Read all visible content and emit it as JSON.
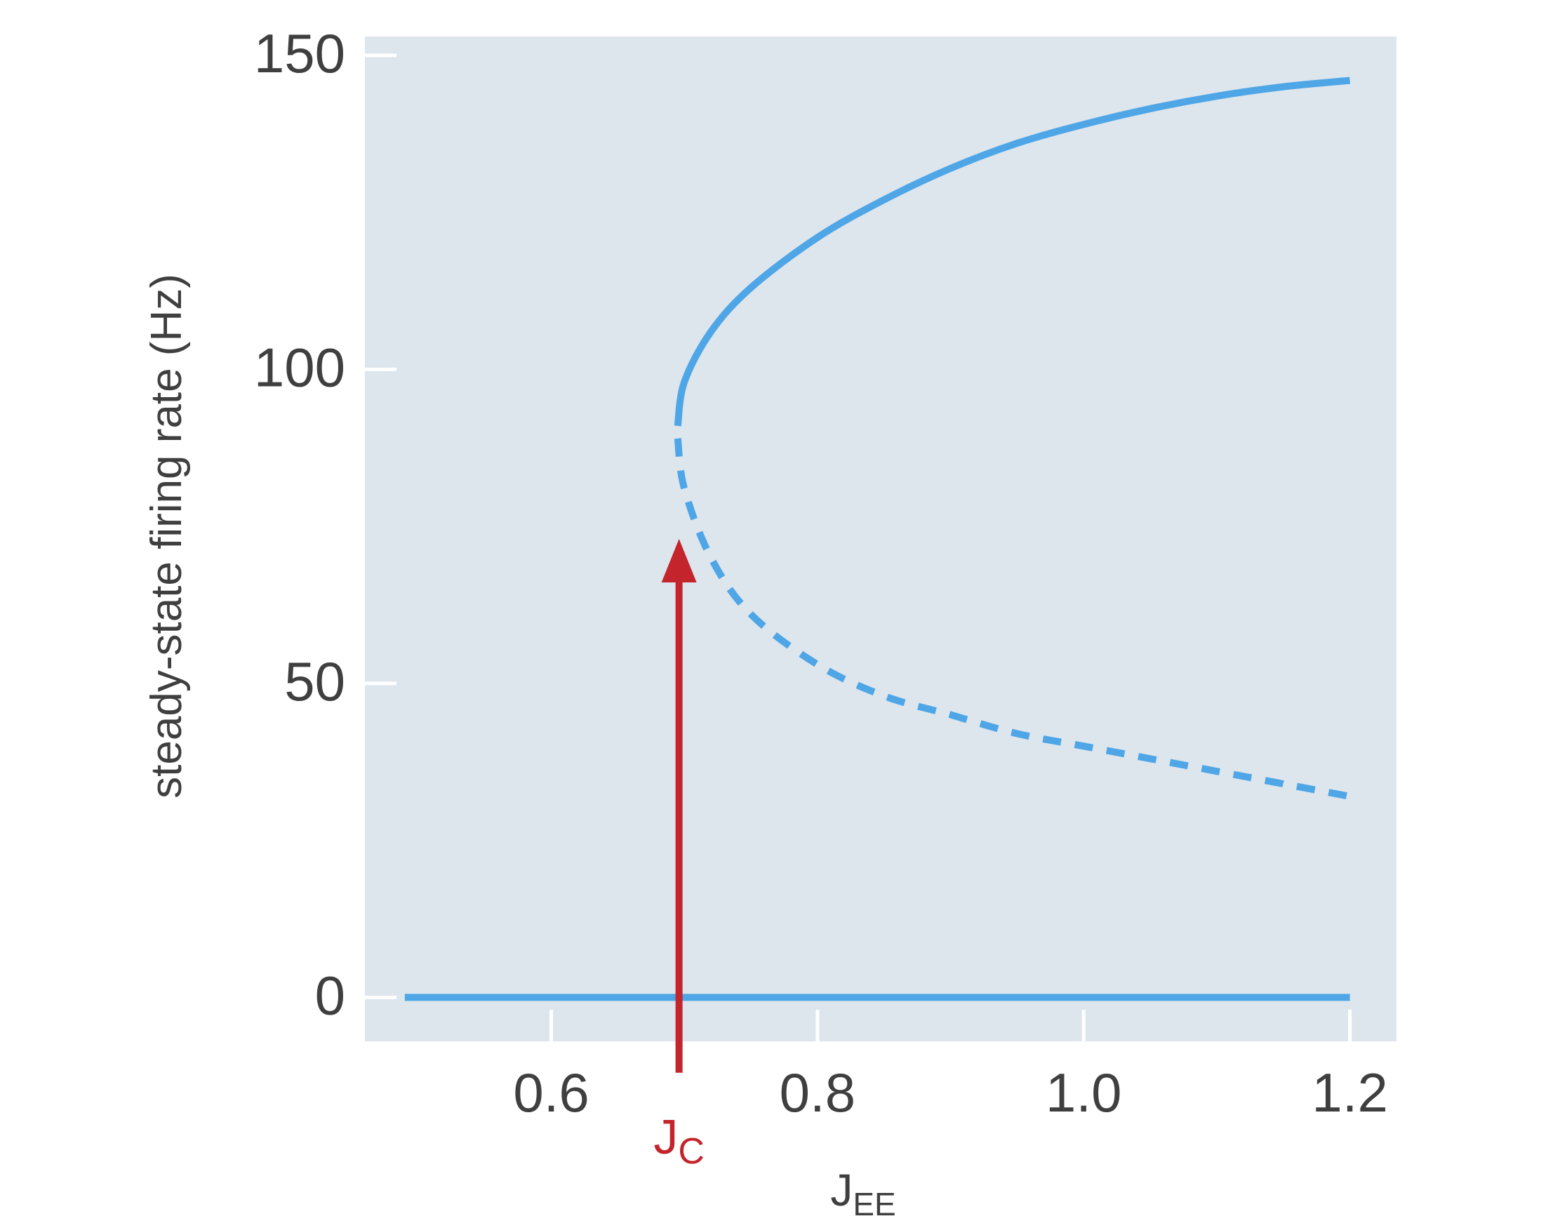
{
  "chart_data": {
    "type": "line",
    "title": "",
    "xlabel": {
      "main": "J",
      "sub": "EE"
    },
    "ylabel": "steady-state firing rate (Hz)",
    "xlim": [
      0.46,
      1.235
    ],
    "ylim": [
      -7,
      153
    ],
    "xticks": [
      0.6,
      0.8,
      1.0,
      1.2
    ],
    "xtick_labels": [
      "0.6",
      "0.8",
      "1.0",
      "1.2"
    ],
    "yticks": [
      0,
      50,
      100,
      150
    ],
    "ytick_labels": [
      "0",
      "50",
      "100",
      "150"
    ],
    "grid": true,
    "background": "#dde5ed",
    "series": [
      {
        "style": "solid",
        "color": "#4ea6e6",
        "x": [
          0.49,
          1.2
        ],
        "y": [
          0,
          0
        ]
      },
      {
        "style": "solid",
        "color": "#4ea6e6",
        "x": [
          0.695,
          0.7,
          0.72,
          0.75,
          0.8,
          0.85,
          0.9,
          0.95,
          1.0,
          1.05,
          1.1,
          1.15,
          1.2
        ],
        "y": [
          91,
          98,
          106,
          113,
          121,
          127,
          132,
          136,
          139,
          141.5,
          143.5,
          145,
          146
        ]
      },
      {
        "style": "dashed",
        "color": "#4ea6e6",
        "x": [
          0.695,
          0.7,
          0.72,
          0.75,
          0.8,
          0.85,
          0.9,
          0.95,
          1.0,
          1.05,
          1.1,
          1.15,
          1.2
        ],
        "y": [
          89,
          81,
          70,
          61,
          53,
          48,
          45,
          42,
          40,
          38,
          36,
          34,
          32
        ]
      }
    ],
    "annotations": [
      {
        "text_main": "J",
        "text_sub": "C",
        "color": "#c4242b",
        "arrow_x": 0.696,
        "arrow_from_y": -12,
        "arrow_to_y": 73
      }
    ]
  }
}
